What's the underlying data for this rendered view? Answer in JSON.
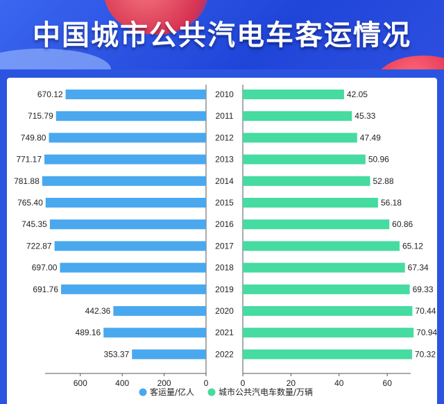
{
  "title": "中国城市公共汽电车客运情况",
  "chart_data": {
    "type": "bar",
    "categories": [
      "2010",
      "2011",
      "2012",
      "2013",
      "2014",
      "2015",
      "2016",
      "2017",
      "2018",
      "2019",
      "2020",
      "2021",
      "2022"
    ],
    "series": [
      {
        "name": "客运量/亿人",
        "color": "#4aa8ee",
        "values": [
          670.12,
          715.79,
          749.8,
          771.17,
          781.88,
          765.4,
          745.35,
          722.87,
          697.0,
          691.76,
          442.36,
          489.16,
          353.37
        ],
        "labels": [
          "670.12",
          "715.79",
          "749.80",
          "771.17",
          "781.88",
          "765.40",
          "745.35",
          "722.87",
          "697.00",
          "691.76",
          "442.36",
          "489.16",
          "353.37"
        ],
        "xlim": [
          0,
          780
        ],
        "ticks": [
          "600",
          "400",
          "200",
          "0"
        ],
        "tick_values": [
          600,
          400,
          200,
          0
        ]
      },
      {
        "name": "城市公共汽电车数量/万辆",
        "color": "#46dba0",
        "values": [
          42.05,
          45.33,
          47.49,
          50.96,
          52.88,
          56.18,
          60.86,
          65.12,
          67.34,
          69.33,
          70.44,
          70.94,
          70.32
        ],
        "labels": [
          "42.05",
          "45.33",
          "47.49",
          "50.96",
          "52.88",
          "56.18",
          "60.86",
          "65.12",
          "67.34",
          "69.33",
          "70.44",
          "70.94",
          "70.32"
        ],
        "xlim": [
          0,
          71
        ],
        "ticks": [
          "0",
          "20",
          "40",
          "60"
        ],
        "tick_values": [
          0,
          20,
          40,
          60
        ]
      }
    ],
    "legend_position": "bottom"
  }
}
